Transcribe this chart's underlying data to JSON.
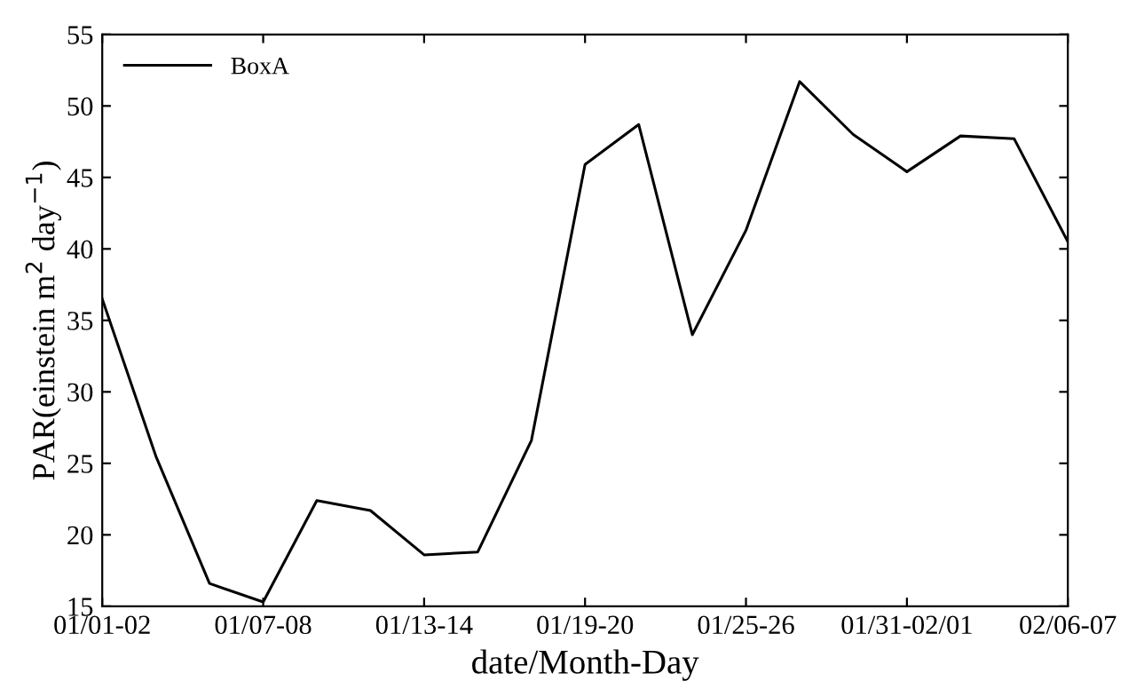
{
  "chart_data": {
    "type": "line",
    "xlabel": "date/Month-Day",
    "ylabel": "PAR(einstein m$^{2}$ day$^{−1}$)",
    "categories": [
      "01/01-02",
      null,
      null,
      "01/07-08",
      null,
      null,
      "01/13-14",
      null,
      null,
      "01/19-20",
      null,
      null,
      "01/25-26",
      null,
      null,
      "01/31-02/01",
      null,
      null,
      "02/06-07"
    ],
    "series": [
      {
        "name": "BoxA",
        "color": "#000000",
        "values": [
          36.5,
          25.5,
          16.6,
          15.3,
          22.4,
          21.7,
          18.6,
          18.8,
          26.6,
          45.9,
          48.7,
          34.0,
          41.3,
          51.7,
          48.0,
          45.4,
          47.9,
          47.7,
          40.5
        ]
      }
    ],
    "ylim": [
      15,
      55
    ],
    "yticks": [
      15,
      20,
      25,
      30,
      35,
      40,
      45,
      50,
      55
    ],
    "grid": false,
    "legend": "top left",
    "marker": "none",
    "line_style": "solid"
  }
}
